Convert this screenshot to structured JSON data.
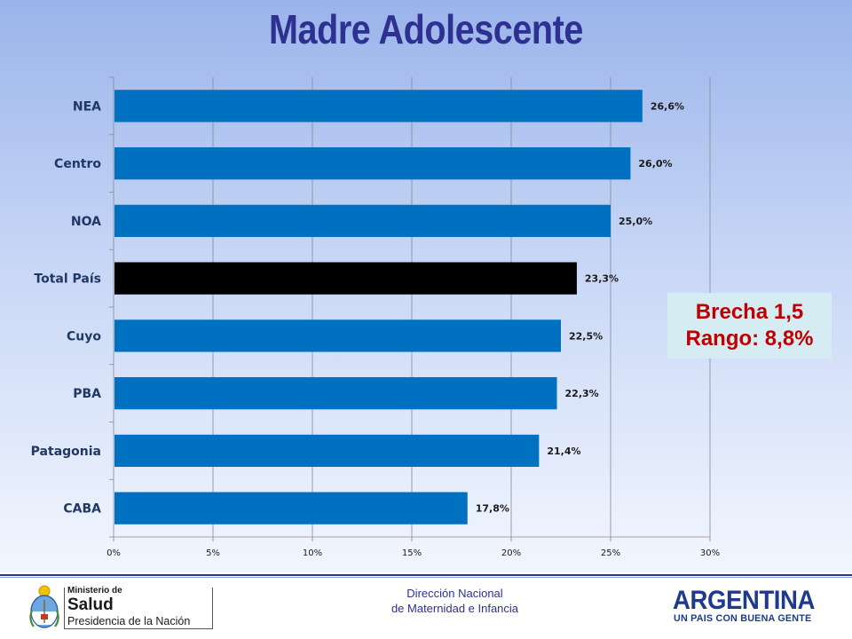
{
  "chart_data": {
    "type": "bar",
    "orientation": "horizontal",
    "title": "Madre Adolescente",
    "categories": [
      "NEA",
      "Centro",
      "NOA",
      "Total País",
      "Cuyo",
      "PBA",
      "Patagonia",
      "CABA"
    ],
    "values": [
      26.6,
      26.0,
      25.0,
      23.3,
      22.5,
      22.3,
      21.4,
      17.8
    ],
    "data_labels": [
      "26,6%",
      "26,0%",
      "25,0%",
      "23,3%",
      "22,5%",
      "22,3%",
      "21,4%",
      "17,8%"
    ],
    "bar_colors": [
      "#0070c0",
      "#0070c0",
      "#0070c0",
      "#000000",
      "#0070c0",
      "#0070c0",
      "#0070c0",
      "#0070c0"
    ],
    "xlim": [
      0,
      30
    ],
    "x_ticks": [
      0,
      5,
      10,
      15,
      20,
      25,
      30
    ],
    "x_tick_labels": [
      "0%",
      "5%",
      "10%",
      "15%",
      "20%",
      "25%",
      "30%"
    ],
    "grid": "vertical",
    "xlabel": "",
    "ylabel": ""
  },
  "callout": {
    "line1": "Brecha 1,5",
    "line2": "Rango: 8,8%"
  },
  "footer": {
    "ministry_line1": "Ministerio de",
    "ministry_line2": "Salud",
    "ministry_line3": "Presidencia de la Nación",
    "direccion_line1": "Dirección Nacional",
    "direccion_line2": "de Maternidad e Infancia",
    "argentina_line1": "ARGENTINA",
    "argentina_line2": "UN PAIS CON BUENA GENTE"
  },
  "colors": {
    "title": "#2e3192",
    "bar": "#0070c0",
    "highlight_bar": "#000000",
    "callout_text": "#c00000",
    "callout_bg": "#d6ecf3"
  }
}
